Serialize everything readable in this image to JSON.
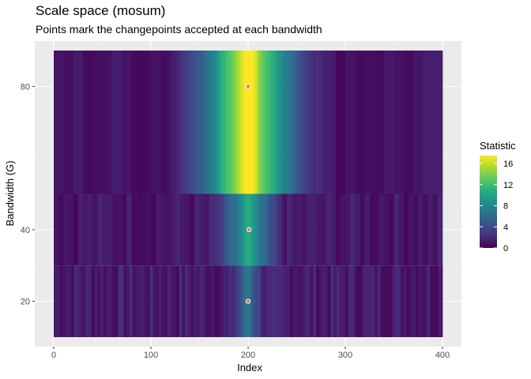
{
  "chart_data": {
    "type": "heatmap",
    "title": "Scale space (mosum)",
    "subtitle": "Points mark the changepoints accepted at each bandwidth",
    "xlabel": "Index",
    "ylabel": "Bandwidth (G)",
    "xlim": [
      0,
      400
    ],
    "ylim": [
      10,
      90
    ],
    "x_ticks": [
      0,
      100,
      200,
      300,
      400
    ],
    "y_ticks": [
      20,
      40,
      80
    ],
    "grid": true,
    "legend": {
      "title": "Statistic",
      "placement": "right",
      "ticks": [
        0,
        4,
        8,
        12,
        16
      ],
      "range": [
        0,
        17.5
      ],
      "colormap": "viridis"
    },
    "rows": [
      {
        "bandwidth": 20,
        "y_range": [
          10,
          30
        ],
        "peak_index": 200,
        "peak_value": 6.0,
        "halfwidth": 20,
        "base_value": 1.2
      },
      {
        "bandwidth": 40,
        "y_range": [
          30,
          50
        ],
        "peak_index": 200,
        "peak_value": 9.5,
        "halfwidth": 40,
        "base_value": 1.0
      },
      {
        "bandwidth": 80,
        "y_range": [
          50,
          90
        ],
        "peak_index": 200,
        "peak_value": 17.5,
        "halfwidth": 80,
        "base_value": 0.8
      }
    ],
    "changepoints": [
      {
        "bandwidth": 20,
        "index": 200
      },
      {
        "bandwidth": 40,
        "index": 201
      },
      {
        "bandwidth": 80,
        "index": 200
      }
    ]
  }
}
